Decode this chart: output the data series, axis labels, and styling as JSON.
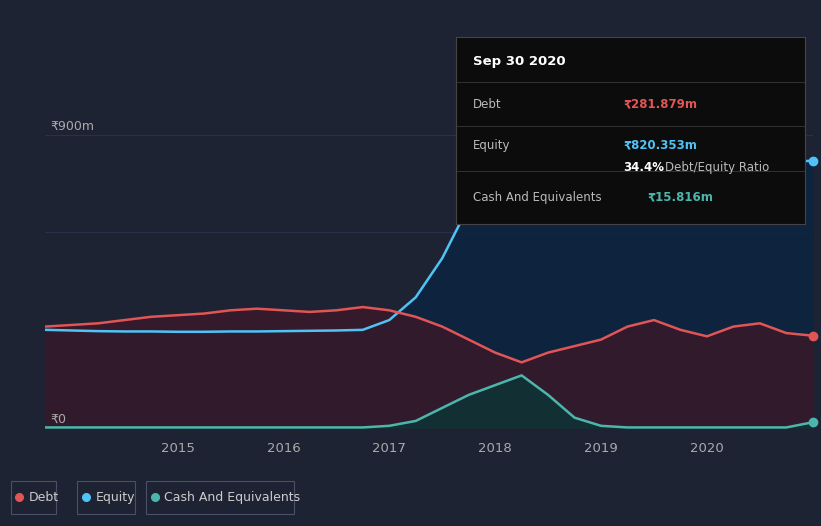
{
  "bg_color": "#1e2333",
  "grid_color": "#2a3050",
  "title_label": "Sep 30 2020",
  "tooltip": {
    "debt_label": "Debt",
    "debt_value": "₹281.879m",
    "equity_label": "Equity",
    "equity_value": "₹820.353m",
    "ratio_bold": "34.4%",
    "ratio_rest": " Debt/Equity Ratio",
    "cash_label": "Cash And Equivalents",
    "cash_value": "₹15.816m"
  },
  "ylabel_top": "₹900m",
  "ylabel_zero": "₹0",
  "x_ticks": [
    "2015",
    "2016",
    "2017",
    "2018",
    "2019",
    "2020"
  ],
  "debt_color": "#e05555",
  "equity_color": "#4fc3f7",
  "cash_color": "#4db6ac",
  "x_values": [
    2013.75,
    2014.0,
    2014.25,
    2014.5,
    2014.75,
    2015.0,
    2015.25,
    2015.5,
    2015.75,
    2016.0,
    2016.25,
    2016.5,
    2016.75,
    2017.0,
    2017.25,
    2017.5,
    2017.75,
    2018.0,
    2018.25,
    2018.5,
    2018.75,
    2019.0,
    2019.25,
    2019.5,
    2019.75,
    2020.0,
    2020.25,
    2020.5,
    2020.75,
    2021.0
  ],
  "debt_y": [
    310,
    315,
    320,
    330,
    340,
    345,
    350,
    360,
    365,
    360,
    355,
    360,
    370,
    360,
    340,
    310,
    270,
    230,
    200,
    230,
    250,
    270,
    310,
    330,
    300,
    280,
    310,
    320,
    290,
    282
  ],
  "equity_y": [
    300,
    298,
    296,
    295,
    295,
    294,
    294,
    295,
    295,
    296,
    297,
    298,
    300,
    330,
    400,
    520,
    680,
    820,
    860,
    870,
    860,
    840,
    830,
    840,
    850,
    840,
    830,
    820,
    815,
    820
  ],
  "cash_y": [
    0,
    0,
    0,
    0,
    0,
    0,
    0,
    0,
    0,
    0,
    0,
    0,
    0,
    5,
    20,
    60,
    100,
    130,
    160,
    100,
    30,
    5,
    0,
    0,
    0,
    0,
    0,
    0,
    0,
    16
  ]
}
